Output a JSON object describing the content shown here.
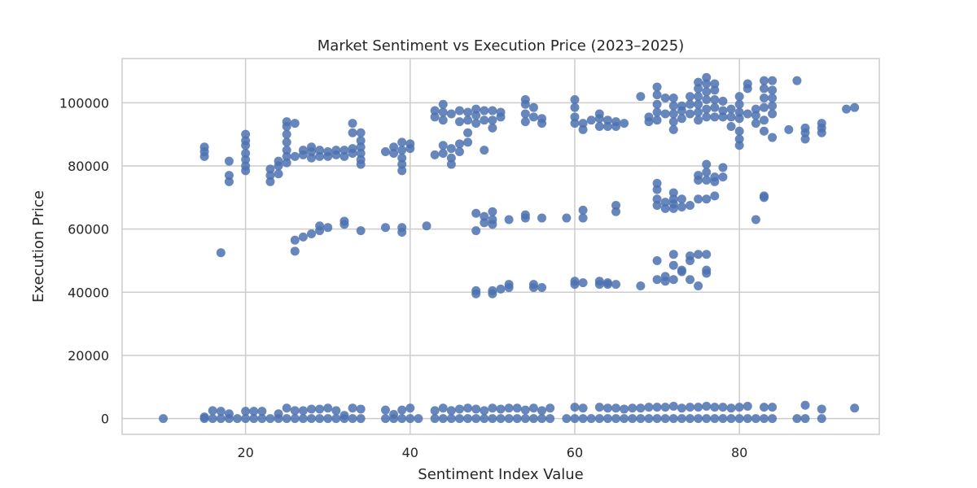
{
  "chart_data": {
    "type": "scatter",
    "title": "Market Sentiment vs Execution Price (2023–2025)",
    "xlabel": "Sentiment Index Value",
    "ylabel": "Execution Price",
    "xlim": [
      5,
      97
    ],
    "ylim": [
      -5000,
      114000
    ],
    "xticks": [
      20,
      40,
      60,
      80
    ],
    "yticks": [
      0,
      20000,
      40000,
      60000,
      80000,
      100000
    ],
    "grid": true,
    "legend": "none",
    "point_color": "#4c72b0",
    "points": [
      [
        10,
        0
      ],
      [
        15,
        0
      ],
      [
        15,
        500
      ],
      [
        16,
        0
      ],
      [
        16,
        2500
      ],
      [
        17,
        0
      ],
      [
        17,
        2300
      ],
      [
        18,
        0
      ],
      [
        18,
        1500
      ],
      [
        19,
        0
      ],
      [
        20,
        0
      ],
      [
        20,
        2300
      ],
      [
        21,
        0
      ],
      [
        21,
        2300
      ],
      [
        22,
        0
      ],
      [
        22,
        2300
      ],
      [
        23,
        0
      ],
      [
        24,
        0
      ],
      [
        24,
        1500
      ],
      [
        25,
        0
      ],
      [
        25,
        3300
      ],
      [
        26,
        0
      ],
      [
        26,
        2500
      ],
      [
        27,
        0
      ],
      [
        27,
        2500
      ],
      [
        28,
        0
      ],
      [
        28,
        3000
      ],
      [
        29,
        0
      ],
      [
        29,
        3000
      ],
      [
        30,
        0
      ],
      [
        30,
        3300
      ],
      [
        31,
        0
      ],
      [
        31,
        2500
      ],
      [
        32,
        0
      ],
      [
        32,
        1000
      ],
      [
        33,
        0
      ],
      [
        33,
        3300
      ],
      [
        34,
        0
      ],
      [
        34,
        3000
      ],
      [
        37,
        0
      ],
      [
        37,
        2700
      ],
      [
        38,
        0
      ],
      [
        38,
        1300
      ],
      [
        39,
        0
      ],
      [
        39,
        2700
      ],
      [
        40,
        0
      ],
      [
        40,
        3300
      ],
      [
        41,
        0
      ],
      [
        43,
        0
      ],
      [
        43,
        2500
      ],
      [
        44,
        0
      ],
      [
        44,
        3300
      ],
      [
        45,
        0
      ],
      [
        45,
        2500
      ],
      [
        46,
        0
      ],
      [
        46,
        3000
      ],
      [
        47,
        0
      ],
      [
        47,
        3300
      ],
      [
        48,
        0
      ],
      [
        48,
        3000
      ],
      [
        49,
        0
      ],
      [
        49,
        2500
      ],
      [
        50,
        0
      ],
      [
        50,
        3300
      ],
      [
        51,
        0
      ],
      [
        51,
        3000
      ],
      [
        52,
        0
      ],
      [
        52,
        3300
      ],
      [
        53,
        0
      ],
      [
        53,
        3300
      ],
      [
        54,
        0
      ],
      [
        54,
        2700
      ],
      [
        55,
        0
      ],
      [
        55,
        3300
      ],
      [
        56,
        0
      ],
      [
        56,
        2500
      ],
      [
        57,
        0
      ],
      [
        57,
        3300
      ],
      [
        59,
        0
      ],
      [
        60,
        0
      ],
      [
        60,
        3600
      ],
      [
        61,
        0
      ],
      [
        61,
        3300
      ],
      [
        62,
        0
      ],
      [
        63,
        0
      ],
      [
        63,
        3600
      ],
      [
        64,
        0
      ],
      [
        64,
        3300
      ],
      [
        65,
        0
      ],
      [
        65,
        3300
      ],
      [
        66,
        0
      ],
      [
        66,
        3000
      ],
      [
        67,
        0
      ],
      [
        67,
        3300
      ],
      [
        68,
        0
      ],
      [
        68,
        3300
      ],
      [
        69,
        0
      ],
      [
        69,
        3600
      ],
      [
        70,
        0
      ],
      [
        70,
        3600
      ],
      [
        71,
        0
      ],
      [
        71,
        3600
      ],
      [
        72,
        0
      ],
      [
        72,
        3900
      ],
      [
        73,
        0
      ],
      [
        73,
        3300
      ],
      [
        74,
        0
      ],
      [
        74,
        3600
      ],
      [
        75,
        0
      ],
      [
        75,
        3600
      ],
      [
        76,
        0
      ],
      [
        76,
        3900
      ],
      [
        77,
        0
      ],
      [
        77,
        3600
      ],
      [
        78,
        0
      ],
      [
        78,
        3600
      ],
      [
        79,
        0
      ],
      [
        79,
        3300
      ],
      [
        80,
        0
      ],
      [
        80,
        3600
      ],
      [
        81,
        0
      ],
      [
        81,
        3900
      ],
      [
        82,
        0
      ],
      [
        83,
        0
      ],
      [
        83,
        3600
      ],
      [
        84,
        0
      ],
      [
        84,
        3600
      ],
      [
        87,
        0
      ],
      [
        88,
        0
      ],
      [
        88,
        4200
      ],
      [
        90,
        0
      ],
      [
        90,
        3000
      ],
      [
        94,
        3300
      ],
      [
        15,
        83000
      ],
      [
        15,
        84500
      ],
      [
        15,
        86000
      ],
      [
        18,
        75000
      ],
      [
        18,
        77000
      ],
      [
        18,
        81500
      ],
      [
        20,
        78500
      ],
      [
        20,
        80000
      ],
      [
        20,
        82000
      ],
      [
        20,
        84000
      ],
      [
        20,
        86500
      ],
      [
        20,
        88000
      ],
      [
        20,
        90000
      ],
      [
        23,
        75000
      ],
      [
        23,
        77000
      ],
      [
        23,
        79000
      ],
      [
        24,
        77500
      ],
      [
        24,
        80000
      ],
      [
        24,
        81500
      ],
      [
        25,
        81000
      ],
      [
        25,
        83000
      ],
      [
        25,
        85000
      ],
      [
        25,
        87500
      ],
      [
        25,
        90000
      ],
      [
        25,
        92500
      ],
      [
        25,
        94000
      ],
      [
        26,
        83000
      ],
      [
        26,
        93500
      ],
      [
        27,
        83500
      ],
      [
        27,
        85000
      ],
      [
        28,
        82500
      ],
      [
        28,
        84500
      ],
      [
        28,
        86000
      ],
      [
        29,
        83000
      ],
      [
        29,
        85000
      ],
      [
        30,
        83000
      ],
      [
        30,
        84500
      ],
      [
        31,
        83500
      ],
      [
        31,
        85000
      ],
      [
        32,
        83000
      ],
      [
        32,
        85000
      ],
      [
        33,
        84000
      ],
      [
        33,
        85500
      ],
      [
        33,
        90500
      ],
      [
        33,
        93500
      ],
      [
        34,
        80500
      ],
      [
        34,
        82000
      ],
      [
        34,
        84000
      ],
      [
        34,
        86000
      ],
      [
        34,
        88000
      ],
      [
        34,
        90500
      ],
      [
        37,
        84500
      ],
      [
        38,
        84000
      ],
      [
        38,
        86000
      ],
      [
        39,
        78500
      ],
      [
        39,
        80500
      ],
      [
        39,
        82500
      ],
      [
        39,
        85000
      ],
      [
        39,
        87500
      ],
      [
        40,
        85500
      ],
      [
        40,
        87000
      ],
      [
        43,
        83500
      ],
      [
        43,
        95500
      ],
      [
        43,
        97500
      ],
      [
        44,
        84000
      ],
      [
        44,
        86500
      ],
      [
        44,
        94500
      ],
      [
        44,
        97000
      ],
      [
        44,
        99500
      ],
      [
        45,
        80500
      ],
      [
        45,
        82500
      ],
      [
        45,
        85500
      ],
      [
        45,
        96500
      ],
      [
        46,
        84500
      ],
      [
        46,
        87000
      ],
      [
        46,
        94000
      ],
      [
        46,
        97500
      ],
      [
        47,
        87500
      ],
      [
        47,
        90500
      ],
      [
        47,
        94500
      ],
      [
        47,
        97000
      ],
      [
        48,
        93500
      ],
      [
        48,
        96000
      ],
      [
        48,
        98000
      ],
      [
        49,
        85000
      ],
      [
        49,
        94500
      ],
      [
        49,
        97500
      ],
      [
        50,
        92000
      ],
      [
        50,
        94500
      ],
      [
        50,
        97500
      ],
      [
        51,
        95500
      ],
      [
        51,
        97000
      ],
      [
        54,
        94000
      ],
      [
        54,
        96500
      ],
      [
        54,
        99500
      ],
      [
        54,
        101000
      ],
      [
        55,
        95500
      ],
      [
        55,
        98500
      ],
      [
        56,
        93500
      ],
      [
        56,
        95000
      ],
      [
        60,
        93500
      ],
      [
        60,
        95500
      ],
      [
        60,
        98500
      ],
      [
        60,
        101000
      ],
      [
        61,
        91500
      ],
      [
        61,
        93500
      ],
      [
        62,
        94500
      ],
      [
        63,
        92500
      ],
      [
        63,
        95000
      ],
      [
        63,
        96500
      ],
      [
        64,
        92500
      ],
      [
        64,
        94500
      ],
      [
        65,
        92500
      ],
      [
        65,
        94000
      ],
      [
        66,
        93500
      ],
      [
        68,
        102000
      ],
      [
        69,
        94000
      ],
      [
        69,
        95500
      ],
      [
        70,
        94500
      ],
      [
        70,
        97000
      ],
      [
        70,
        99500
      ],
      [
        70,
        102500
      ],
      [
        70,
        105000
      ],
      [
        71,
        96500
      ],
      [
        71,
        101500
      ],
      [
        72,
        91500
      ],
      [
        72,
        94000
      ],
      [
        72,
        96500
      ],
      [
        72,
        99000
      ],
      [
        72,
        101500
      ],
      [
        73,
        95000
      ],
      [
        73,
        97500
      ],
      [
        73,
        99000
      ],
      [
        74,
        96500
      ],
      [
        74,
        99500
      ],
      [
        74,
        102000
      ],
      [
        75,
        94500
      ],
      [
        75,
        97000
      ],
      [
        75,
        99500
      ],
      [
        75,
        102000
      ],
      [
        75,
        104500
      ],
      [
        75,
        106500
      ],
      [
        76,
        95500
      ],
      [
        76,
        98000
      ],
      [
        76,
        101000
      ],
      [
        76,
        103500
      ],
      [
        76,
        106000
      ],
      [
        76,
        108000
      ],
      [
        77,
        95500
      ],
      [
        77,
        98500
      ],
      [
        77,
        101000
      ],
      [
        77,
        104000
      ],
      [
        77,
        106000
      ],
      [
        78,
        95500
      ],
      [
        78,
        97500
      ],
      [
        78,
        100500
      ],
      [
        79,
        92500
      ],
      [
        79,
        95500
      ],
      [
        79,
        98000
      ],
      [
        80,
        86500
      ],
      [
        80,
        88500
      ],
      [
        80,
        91000
      ],
      [
        80,
        95000
      ],
      [
        80,
        97000
      ],
      [
        80,
        99500
      ],
      [
        80,
        102000
      ],
      [
        81,
        96500
      ],
      [
        81,
        104500
      ],
      [
        81,
        106000
      ],
      [
        82,
        93500
      ],
      [
        82,
        96000
      ],
      [
        82,
        98000
      ],
      [
        83,
        91000
      ],
      [
        83,
        94500
      ],
      [
        83,
        98500
      ],
      [
        83,
        101500
      ],
      [
        83,
        104500
      ],
      [
        83,
        107000
      ],
      [
        84,
        89000
      ],
      [
        84,
        96500
      ],
      [
        84,
        99000
      ],
      [
        84,
        101500
      ],
      [
        84,
        104000
      ],
      [
        84,
        107000
      ],
      [
        86,
        91500
      ],
      [
        87,
        107000
      ],
      [
        88,
        88500
      ],
      [
        88,
        90500
      ],
      [
        88,
        92000
      ],
      [
        90,
        90500
      ],
      [
        90,
        92000
      ],
      [
        90,
        93500
      ],
      [
        93,
        98000
      ],
      [
        94,
        98500
      ],
      [
        17,
        52500
      ],
      [
        26,
        53000
      ],
      [
        26,
        56500
      ],
      [
        27,
        57500
      ],
      [
        28,
        58500
      ],
      [
        29,
        59500
      ],
      [
        29,
        61000
      ],
      [
        30,
        60500
      ],
      [
        32,
        61500
      ],
      [
        32,
        62500
      ],
      [
        34,
        59500
      ],
      [
        37,
        60500
      ],
      [
        39,
        59000
      ],
      [
        39,
        60500
      ],
      [
        42,
        61000
      ],
      [
        48,
        59500
      ],
      [
        48,
        65000
      ],
      [
        49,
        62000
      ],
      [
        49,
        64000
      ],
      [
        50,
        61500
      ],
      [
        50,
        63000
      ],
      [
        50,
        65500
      ],
      [
        52,
        63000
      ],
      [
        54,
        63500
      ],
      [
        54,
        64500
      ],
      [
        56,
        63500
      ],
      [
        59,
        63500
      ],
      [
        61,
        63500
      ],
      [
        61,
        66000
      ],
      [
        65,
        65500
      ],
      [
        65,
        67500
      ],
      [
        70,
        67500
      ],
      [
        70,
        69500
      ],
      [
        70,
        72500
      ],
      [
        70,
        74500
      ],
      [
        71,
        66500
      ],
      [
        71,
        68500
      ],
      [
        72,
        66500
      ],
      [
        72,
        68000
      ],
      [
        72,
        69500
      ],
      [
        72,
        71500
      ],
      [
        73,
        67000
      ],
      [
        73,
        69500
      ],
      [
        74,
        67500
      ],
      [
        75,
        69500
      ],
      [
        75,
        75500
      ],
      [
        75,
        77000
      ],
      [
        76,
        69500
      ],
      [
        76,
        75500
      ],
      [
        76,
        78000
      ],
      [
        76,
        80500
      ],
      [
        77,
        70500
      ],
      [
        77,
        75000
      ],
      [
        77,
        76500
      ],
      [
        78,
        76500
      ],
      [
        78,
        79500
      ],
      [
        82,
        63000
      ],
      [
        83,
        70000
      ],
      [
        83,
        70500
      ],
      [
        48,
        39500
      ],
      [
        48,
        40500
      ],
      [
        50,
        39500
      ],
      [
        50,
        40500
      ],
      [
        51,
        41000
      ],
      [
        52,
        41500
      ],
      [
        52,
        42500
      ],
      [
        55,
        41500
      ],
      [
        55,
        42500
      ],
      [
        56,
        41500
      ],
      [
        60,
        42500
      ],
      [
        60,
        43500
      ],
      [
        61,
        43000
      ],
      [
        63,
        42500
      ],
      [
        63,
        43500
      ],
      [
        64,
        42500
      ],
      [
        64,
        43000
      ],
      [
        65,
        42500
      ],
      [
        68,
        42000
      ],
      [
        70,
        44000
      ],
      [
        70,
        50000
      ],
      [
        71,
        43500
      ],
      [
        71,
        45000
      ],
      [
        72,
        44000
      ],
      [
        72,
        48500
      ],
      [
        72,
        52000
      ],
      [
        73,
        46500
      ],
      [
        73,
        47000
      ],
      [
        74,
        44000
      ],
      [
        74,
        50000
      ],
      [
        74,
        51500
      ],
      [
        75,
        42000
      ],
      [
        75,
        52000
      ],
      [
        76,
        46000
      ],
      [
        76,
        47000
      ],
      [
        76,
        52000
      ]
    ]
  }
}
